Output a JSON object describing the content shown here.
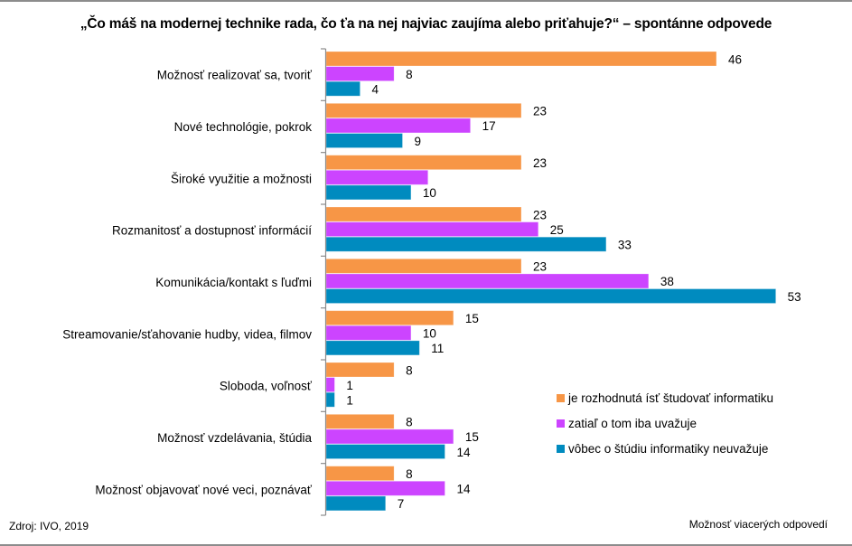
{
  "chart_data": {
    "type": "bar",
    "orientation": "horizontal",
    "title": "„Čo máš na modernej technike rada, čo ťa na nej najviac zaujíma alebo priťahuje?“ – spontánne odpovede",
    "xlabel": "",
    "ylabel": "",
    "xlim": [
      0,
      55
    ],
    "grid": false,
    "legend_position": "right-bottom",
    "categories": [
      "Možnosť realizovať sa, tvoriť",
      "Nové technológie, pokrok",
      "Široké využitie a možnosti",
      "Rozmanitosť a dostupnosť  informácií",
      "Komunikácia/kontakt s ľuďmi",
      "Streamovanie/sťahovanie hudby, videa, filmov",
      "Sloboda, voľnosť",
      "Možnosť vzdelávania, štúdia",
      "Možnosť objavovať nové veci, poznávať"
    ],
    "series": [
      {
        "name": "je rozhodnutá ísť študovať informatiku",
        "color": "#F79646",
        "values": [
          46,
          23,
          23,
          23,
          23,
          15,
          8,
          8,
          8
        ],
        "labels": [
          "46",
          "23",
          "23",
          "23",
          "23",
          "15",
          "8",
          "8",
          "8"
        ]
      },
      {
        "name": "zatiaľ o tom iba uvažuje",
        "color": "#CC44FF",
        "values": [
          8,
          17,
          12,
          25,
          38,
          10,
          1,
          15,
          14
        ],
        "labels": [
          "8",
          "17",
          "",
          "25",
          "38",
          "10",
          "1",
          "15",
          "14"
        ]
      },
      {
        "name": "vôbec o štúdiu informatiky neuvažuje",
        "color": "#008BBF",
        "values": [
          4,
          9,
          10,
          33,
          53,
          11,
          1,
          14,
          7
        ],
        "labels": [
          "4",
          "9",
          "10",
          "33",
          "53",
          "11",
          "1",
          "14",
          "7"
        ]
      }
    ]
  },
  "footer": {
    "source": "Zdroj: IVO, 2019",
    "note": "Možnosť viacerých odpovedí"
  }
}
